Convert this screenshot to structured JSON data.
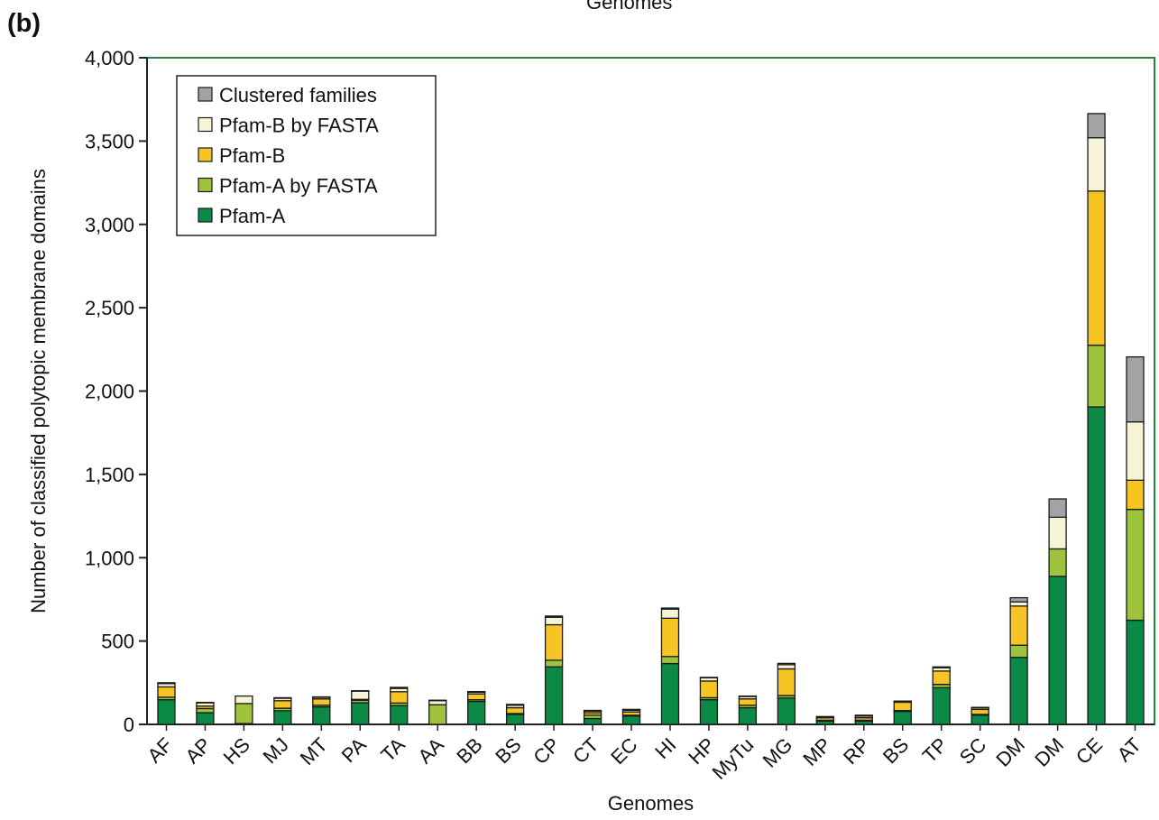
{
  "panel_label": "(b)",
  "top_cut_label": "Genomes",
  "colors": {
    "Pfam-A": "#0a8a45",
    "Pfam-A by FASTA": "#9dc43c",
    "Pfam-B": "#f6c423",
    "Pfam-B by FASTA": "#f7f4d6",
    "Clustered families": "#a3a3a6",
    "plot_border": "#1f8a3f"
  },
  "chart_data": {
    "type": "bar",
    "stacked": true,
    "xlabel": "Genomes",
    "ylabel": "Number of classified polytopic membrane domains",
    "ylim": [
      0,
      4000
    ],
    "yticks": [
      0,
      500,
      1000,
      1500,
      2000,
      2500,
      3000,
      3500,
      4000
    ],
    "ytick_labels": [
      "0",
      "500",
      "1,000",
      "1,500",
      "2,000",
      "2,500",
      "3,000",
      "3,500",
      "4,000"
    ],
    "legend_position": "top-left",
    "legend_order": [
      "Clustered families",
      "Pfam-B by FASTA",
      "Pfam-B",
      "Pfam-A by FASTA",
      "Pfam-A"
    ],
    "categories": [
      "AF",
      "AP",
      "HS",
      "MJ",
      "MT",
      "PA",
      "TA",
      "AA",
      "BB",
      "BS",
      "CP",
      "CT",
      "EC",
      "HI",
      "HP",
      "MyTu",
      "MG",
      "MP",
      "RP",
      "BS",
      "TP",
      "SC",
      "DM",
      "DM",
      "CE",
      "AT"
    ],
    "series": [
      {
        "name": "Pfam-A",
        "values": [
          148,
          70,
          5,
          82,
          105,
          130,
          113,
          0,
          138,
          60,
          345,
          35,
          50,
          365,
          148,
          100,
          158,
          20,
          20,
          78,
          220,
          55,
          402,
          888,
          1905,
          625
        ]
      },
      {
        "name": "Pfam-A by FASTA",
        "values": [
          15,
          25,
          120,
          15,
          10,
          15,
          15,
          118,
          10,
          5,
          40,
          20,
          5,
          42,
          12,
          15,
          15,
          5,
          5,
          5,
          20,
          5,
          73,
          165,
          370,
          665
        ]
      },
      {
        "name": "Pfam-B",
        "values": [
          62,
          15,
          0,
          45,
          38,
          5,
          68,
          0,
          35,
          35,
          213,
          15,
          20,
          230,
          100,
          38,
          160,
          15,
          15,
          50,
          80,
          30,
          235,
          0,
          925,
          175
        ]
      },
      {
        "name": "Pfam-B by FASTA",
        "values": [
          20,
          20,
          45,
          15,
          10,
          50,
          20,
          25,
          10,
          15,
          45,
          10,
          10,
          55,
          20,
          15,
          25,
          5,
          10,
          5,
          20,
          10,
          25,
          190,
          320,
          350
        ]
      },
      {
        "name": "Clustered families",
        "values": [
          5,
          2,
          0,
          3,
          2,
          2,
          6,
          2,
          4,
          5,
          7,
          4,
          5,
          6,
          2,
          2,
          8,
          2,
          5,
          2,
          5,
          2,
          25,
          110,
          145,
          390
        ]
      }
    ]
  }
}
